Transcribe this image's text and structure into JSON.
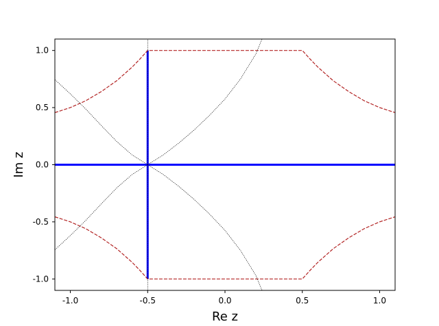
{
  "chart_data": {
    "type": "line",
    "title": "",
    "xlabel": "Re z",
    "ylabel": "Im z",
    "xlim": [
      -1.1,
      1.1
    ],
    "ylim": [
      -1.1,
      1.1
    ],
    "grid": false,
    "xticks": [
      {
        "value": -1.0,
        "label": "-1.0"
      },
      {
        "value": -0.5,
        "label": "-0.5"
      },
      {
        "value": 0.0,
        "label": "0.0"
      },
      {
        "value": 0.5,
        "label": "0.5"
      },
      {
        "value": 1.0,
        "label": "1.0"
      }
    ],
    "yticks": [
      {
        "value": -1.0,
        "label": "-1.0"
      },
      {
        "value": -0.5,
        "label": "-0.5"
      },
      {
        "value": 0.0,
        "label": "0.0"
      },
      {
        "value": 0.5,
        "label": "0.5"
      },
      {
        "value": 1.0,
        "label": "1.0"
      }
    ],
    "series": [
      {
        "color": "#0000ff",
        "style": "solid",
        "points": [
          [
            -1.1,
            0.0
          ],
          [
            1.1,
            0.0
          ]
        ]
      },
      {
        "color": "#0000ff",
        "style": "solid",
        "points": [
          [
            -0.5,
            -1.0
          ],
          [
            -0.5,
            1.0
          ]
        ]
      },
      {
        "color": "#b22222",
        "style": "dashed",
        "points": [
          [
            -1.1,
            0.456
          ],
          [
            -1.0,
            0.5
          ],
          [
            -0.9,
            0.56
          ],
          [
            -0.8,
            0.64
          ],
          [
            -0.7,
            0.735
          ],
          [
            -0.6,
            0.855
          ],
          [
            -0.55,
            0.925
          ],
          [
            -0.5,
            1.0
          ],
          [
            0.5,
            1.0
          ],
          [
            0.55,
            0.925
          ],
          [
            0.6,
            0.855
          ],
          [
            0.7,
            0.735
          ],
          [
            0.8,
            0.64
          ],
          [
            0.9,
            0.56
          ],
          [
            1.0,
            0.5
          ],
          [
            1.1,
            0.456
          ]
        ]
      },
      {
        "color": "#b22222",
        "style": "dashed",
        "points": [
          [
            -1.1,
            -0.456
          ],
          [
            -1.0,
            -0.5
          ],
          [
            -0.9,
            -0.56
          ],
          [
            -0.8,
            -0.64
          ],
          [
            -0.7,
            -0.735
          ],
          [
            -0.6,
            -0.855
          ],
          [
            -0.55,
            -0.925
          ],
          [
            -0.5,
            -1.0
          ],
          [
            0.5,
            -1.0
          ],
          [
            0.55,
            -0.925
          ],
          [
            0.6,
            -0.855
          ],
          [
            0.7,
            -0.735
          ],
          [
            0.8,
            -0.64
          ],
          [
            0.9,
            -0.56
          ],
          [
            1.0,
            -0.5
          ],
          [
            1.1,
            -0.456
          ]
        ]
      },
      {
        "color": "#000000",
        "style": "dotted",
        "points": [
          [
            -1.1,
            0.745
          ],
          [
            -1.0,
            0.62
          ],
          [
            -0.9,
            0.487
          ],
          [
            -0.8,
            0.343
          ],
          [
            -0.7,
            0.203
          ],
          [
            -0.6,
            0.085
          ],
          [
            -0.5,
            0.0
          ],
          [
            -0.4,
            -0.085
          ],
          [
            -0.3,
            -0.188
          ],
          [
            -0.2,
            -0.303
          ],
          [
            -0.1,
            -0.432
          ],
          [
            0.0,
            -0.575
          ],
          [
            0.1,
            -0.75
          ],
          [
            0.2,
            -0.97
          ],
          [
            0.24,
            -1.1
          ]
        ]
      },
      {
        "color": "#000000",
        "style": "dotted",
        "points": [
          [
            -1.1,
            -0.745
          ],
          [
            -1.0,
            -0.62
          ],
          [
            -0.9,
            -0.487
          ],
          [
            -0.8,
            -0.343
          ],
          [
            -0.7,
            -0.203
          ],
          [
            -0.6,
            -0.085
          ],
          [
            -0.5,
            0.0
          ],
          [
            -0.4,
            0.085
          ],
          [
            -0.3,
            0.188
          ],
          [
            -0.2,
            0.303
          ],
          [
            -0.1,
            0.432
          ],
          [
            0.0,
            0.575
          ],
          [
            0.1,
            0.75
          ],
          [
            0.2,
            0.97
          ],
          [
            0.24,
            1.1
          ]
        ]
      },
      {
        "color": "#000000",
        "style": "dotted",
        "points": [
          [
            -0.5,
            -1.1
          ],
          [
            -0.5,
            1.1
          ]
        ]
      }
    ]
  }
}
